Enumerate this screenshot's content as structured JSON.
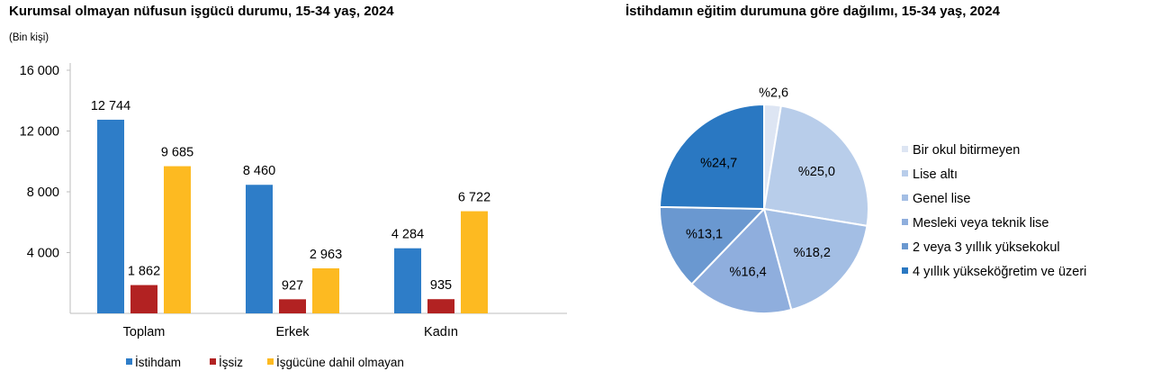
{
  "bar_title": "Kurumsal olmayan nüfusun işgücü durumu, 15-34 yaş, 2024",
  "pie_title": "İstihdamın eğitim durumuna göre dağılımı, 15-34 yaş, 2024",
  "unit_label": "(Bin kişi)",
  "chart_data": [
    {
      "type": "bar",
      "title": "Kurumsal olmayan nüfusun işgücü durumu, 15-34 yaş, 2024",
      "ylabel": "(Bin kişi)",
      "ylim": [
        0,
        16000
      ],
      "yticks": [
        4000,
        8000,
        12000,
        16000
      ],
      "ytick_labels": [
        "4 000",
        "8 000",
        "12 000",
        "16 000"
      ],
      "categories": [
        "Toplam",
        "Erkek",
        "Kadın"
      ],
      "legend_position": "bottom",
      "grid": false,
      "series": [
        {
          "name": "İstihdam",
          "color": "#2E7DC8",
          "values": [
            12744,
            8460,
            4284
          ],
          "labels": [
            "12 744",
            "8 460",
            "4 284"
          ]
        },
        {
          "name": "İşsiz",
          "color": "#B22222",
          "values": [
            1862,
            927,
            935
          ],
          "labels": [
            "1 862",
            "927",
            "935"
          ]
        },
        {
          "name": "İşgücüne dahil olmayan",
          "color": "#FDBA21",
          "values": [
            9685,
            2963,
            6722
          ],
          "labels": [
            "9 685",
            "2 963",
            "6 722"
          ]
        }
      ]
    },
    {
      "type": "pie",
      "title": "İstihdamın eğitim durumuna göre dağılımı, 15-34 yaş, 2024",
      "legend_position": "right",
      "slices": [
        {
          "name": "Bir okul bitirmeyen",
          "value": 2.6,
          "label": "%2,6",
          "color": "#DDE5F3"
        },
        {
          "name": "Lise altı",
          "value": 25.0,
          "label": "%25,0",
          "color": "#B8CDEA"
        },
        {
          "name": "Genel lise",
          "value": 18.2,
          "label": "%18,2",
          "color": "#A3BEE4"
        },
        {
          "name": "Mesleki veya teknik lise",
          "value": 16.4,
          "label": "%16,4",
          "color": "#8FAEDD"
        },
        {
          "name": "2 veya 3 yıllık yüksekokul",
          "value": 13.1,
          "label": "%13,1",
          "color": "#6A98D0"
        },
        {
          "name": "4 yıllık yükseköğretim ve üzeri",
          "value": 24.7,
          "label": "%24,7",
          "color": "#2A78C2"
        }
      ]
    }
  ]
}
